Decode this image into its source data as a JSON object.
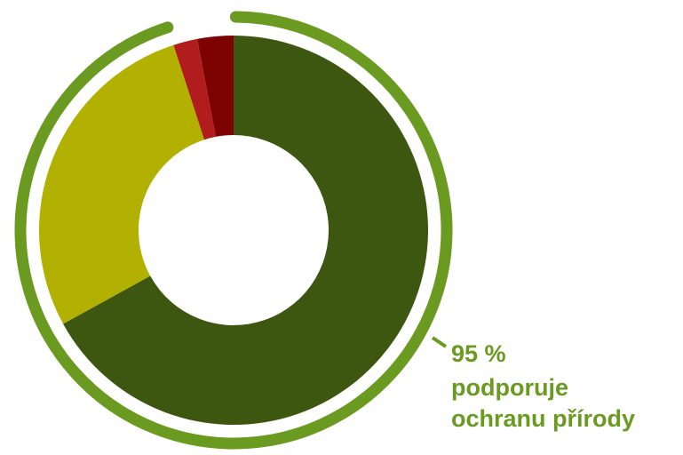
{
  "chart_data": {
    "type": "donut",
    "categories": [
      null,
      null,
      null,
      null
    ],
    "values": [
      67,
      28,
      2,
      3
    ],
    "colors": [
      "#3d5710",
      "#b2b000",
      "#b11d1d",
      "#7d0202"
    ],
    "highlight": {
      "value": 95,
      "label": "95 %",
      "color": "#6a9a1f"
    },
    "annotation": [
      "podporuje",
      "ochranu přírody"
    ]
  }
}
